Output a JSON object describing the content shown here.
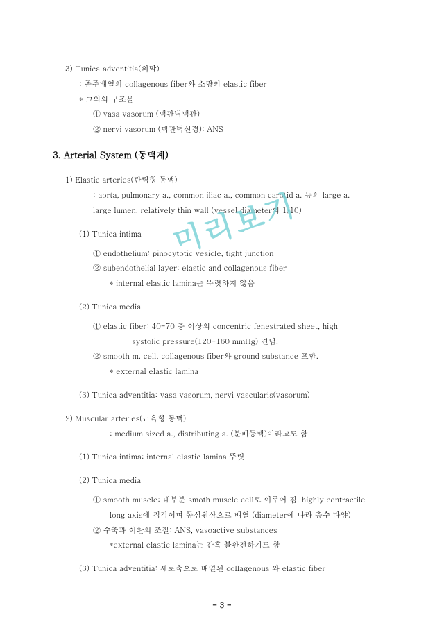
{
  "watermark": "미리보기",
  "top": {
    "item3_title": "3) Tunica adventitia(외막)",
    "item3_line1": ": 종주배열의 collagenous fiber와 소량의 elastic fiber",
    "item3_line2": "* 그외의 구조물",
    "item3_sub1": "① vasa vasorum (맥관벽맥관)",
    "item3_sub2": "② nervi vasorum (맥관벽신경): ANS"
  },
  "section3_title": "3. Arterial System (동맥계)",
  "s3": {
    "elastic_title": "1) Elastic arteries(탄력형 동맥)",
    "elastic_line1": ": aorta, pulmonary a., common iliac a., common carotid a. 등의 large a.",
    "elastic_line2": "large lumen, relatively thin wall (vessel diameter의 1/10)",
    "ti_title": "(1) Tunica intima",
    "ti_sub1": "① endothelium: pinocytotic vesicle, tight junction",
    "ti_sub2": "② subendothelial layer: elastic and collagenous fiber",
    "ti_sub3": "* internal elastic lamina는 뚜렷하지 않음",
    "tm_title": "(2) Tunica media",
    "tm_sub1": "① elastic fiber: 40-70 층 이상의 concentric fenestrated sheet, high",
    "tm_sub1b": "systolic pressure(120-160 mmHg) 견딤.",
    "tm_sub2": "② smooth m. cell, collagenous fiber와 ground substance 포함.",
    "tm_sub3": "* external elastic lamina",
    "ta_title": "(3) Tunica adventitia: vasa vasorum, nervi vascularis(vasorum)",
    "muscular_title": "2) Muscular arteries(근육형 동맥)",
    "muscular_line1": ": medium sized a., distributing a. (분배동맥)이라고도 함",
    "m_ti_title": "(1) Tunica intima: internal elastic lamina 뚜렷",
    "m_tm_title": "(2) Tunica media",
    "m_tm_sub1": "① smooth muscle: 대부분 smoth muscle cell로 이루어 짐. highly contractile",
    "m_tm_sub1b": "long axis에 직각이며 동심원상으로 배열 (diameter에 나라 층수 다양)",
    "m_tm_sub2": "② 수축과 이완의 조절: ANS, vasoactive substances",
    "m_tm_sub3": "*external elastic lamina는 간혹 불완전하기도 함",
    "m_ta_title": "(3) Tunica adventitia: 세로축으로 배열된 collagenous 와 elastic fiber"
  },
  "page_number": "- 3 -"
}
